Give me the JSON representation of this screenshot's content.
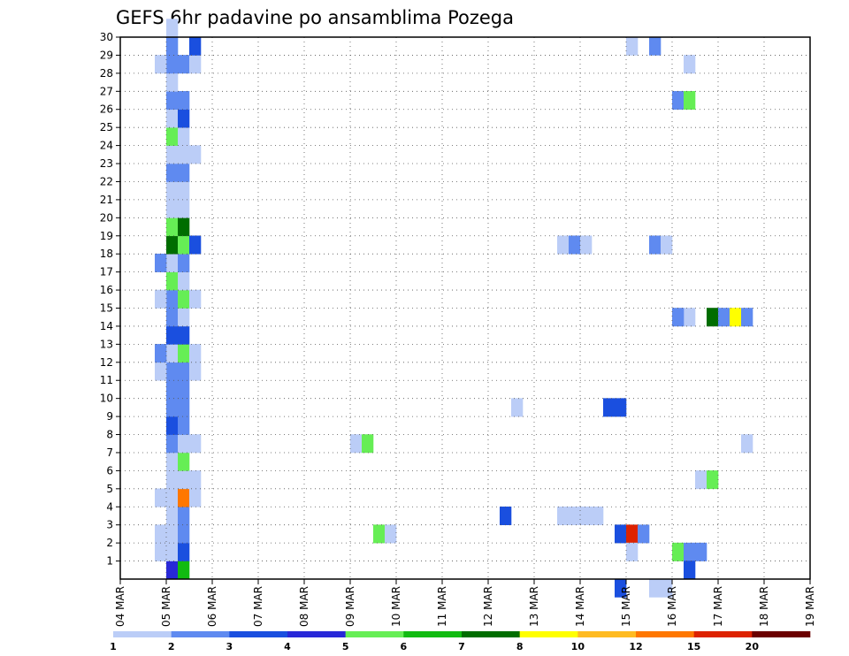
{
  "chart_data": {
    "type": "heatmap",
    "title": "GEFS 6hr padavine po ansamblima Pozega",
    "x_ticks": [
      "04 MAR",
      "05 MAR",
      "06 MAR",
      "07 MAR",
      "08 MAR",
      "09 MAR",
      "10 MAR",
      "11 MAR",
      "12 MAR",
      "13 MAR",
      "14 MAR",
      "15 MAR",
      "16 MAR",
      "17 MAR",
      "18 MAR",
      "19 MAR"
    ],
    "xlim": [
      0,
      60
    ],
    "x_unit": "6-hour steps since 04 MAR 00Z",
    "y_ticks": [
      "1",
      "2",
      "3",
      "4",
      "5",
      "6",
      "7",
      "8",
      "9",
      "10",
      "11",
      "12",
      "13",
      "14",
      "15",
      "16",
      "17",
      "18",
      "19",
      "20",
      "21",
      "22",
      "23",
      "24",
      "25",
      "26",
      "27",
      "28",
      "29",
      "30"
    ],
    "ylim": [
      0,
      30
    ],
    "legend": {
      "labels": [
        "1",
        "2",
        "3",
        "4",
        "5",
        "6",
        "7",
        "8",
        "10",
        "12",
        "15",
        "20"
      ],
      "colors": [
        "#bbcdf7",
        "#5f8af0",
        "#1a4fdf",
        "#2828d8",
        "#66ee55",
        "#11bb11",
        "#006d00",
        "#ffff00",
        "#ffbb22",
        "#ff7700",
        "#dd2200",
        "#6b0000"
      ]
    },
    "grid": true,
    "cells": [
      [
        4,
        0,
        3
      ],
      [
        4,
        1,
        0
      ],
      [
        4,
        2,
        0
      ],
      [
        4,
        3,
        0
      ],
      [
        4,
        4,
        0
      ],
      [
        4,
        5,
        0
      ],
      [
        4,
        6,
        0
      ],
      [
        4,
        7,
        1
      ],
      [
        4,
        8,
        2
      ],
      [
        4,
        9,
        1
      ],
      [
        4,
        10,
        1
      ],
      [
        4,
        11,
        1
      ],
      [
        4,
        12,
        0
      ],
      [
        4,
        13,
        2
      ],
      [
        4,
        14,
        1
      ],
      [
        4,
        15,
        1
      ],
      [
        4,
        16,
        4
      ],
      [
        4,
        17,
        0
      ],
      [
        4,
        18,
        6
      ],
      [
        4,
        19,
        4
      ],
      [
        4,
        20,
        0
      ],
      [
        4,
        21,
        0
      ],
      [
        4,
        22,
        1
      ],
      [
        4,
        23,
        0
      ],
      [
        4,
        24,
        4
      ],
      [
        4,
        25,
        0
      ],
      [
        4,
        26,
        1
      ],
      [
        4,
        27,
        0
      ],
      [
        4,
        28,
        1
      ],
      [
        4,
        29,
        1
      ],
      [
        4,
        30,
        0
      ],
      [
        5,
        0,
        5
      ],
      [
        5,
        1,
        2
      ],
      [
        5,
        2,
        1
      ],
      [
        5,
        3,
        1
      ],
      [
        5,
        4,
        9
      ],
      [
        5,
        5,
        0
      ],
      [
        5,
        6,
        4
      ],
      [
        5,
        7,
        0
      ],
      [
        5,
        8,
        1
      ],
      [
        5,
        9,
        1
      ],
      [
        5,
        10,
        1
      ],
      [
        5,
        11,
        1
      ],
      [
        5,
        12,
        4
      ],
      [
        5,
        13,
        2
      ],
      [
        5,
        14,
        0
      ],
      [
        5,
        15,
        4
      ],
      [
        5,
        16,
        0
      ],
      [
        5,
        17,
        1
      ],
      [
        5,
        18,
        4
      ],
      [
        5,
        19,
        6
      ],
      [
        5,
        20,
        0
      ],
      [
        5,
        21,
        0
      ],
      [
        5,
        22,
        1
      ],
      [
        5,
        23,
        0
      ],
      [
        5,
        24,
        0
      ],
      [
        5,
        25,
        2
      ],
      [
        5,
        26,
        1
      ],
      [
        5,
        28,
        1
      ],
      [
        3,
        1,
        0
      ],
      [
        3,
        2,
        0
      ],
      [
        3,
        4,
        0
      ],
      [
        3,
        11,
        0
      ],
      [
        3,
        12,
        1
      ],
      [
        3,
        15,
        0
      ],
      [
        3,
        17,
        1
      ],
      [
        3,
        28,
        0
      ],
      [
        6,
        4,
        0
      ],
      [
        6,
        5,
        0
      ],
      [
        6,
        7,
        0
      ],
      [
        6,
        11,
        0
      ],
      [
        6,
        12,
        0
      ],
      [
        6,
        15,
        0
      ],
      [
        6,
        18,
        2
      ],
      [
        6,
        23,
        0
      ],
      [
        6,
        28,
        0
      ],
      [
        6,
        29,
        2
      ],
      [
        20,
        7,
        0
      ],
      [
        21,
        7,
        4
      ],
      [
        22,
        2,
        4
      ],
      [
        23,
        2,
        0
      ],
      [
        34,
        9,
        0
      ],
      [
        33,
        3,
        2
      ],
      [
        38,
        3,
        0
      ],
      [
        39,
        3,
        0
      ],
      [
        38,
        18,
        0
      ],
      [
        39,
        18,
        1
      ],
      [
        40,
        18,
        0
      ],
      [
        40,
        3,
        0
      ],
      [
        41,
        3,
        0
      ],
      [
        42,
        9,
        2
      ],
      [
        43,
        9,
        2
      ],
      [
        43,
        -1,
        2
      ],
      [
        43,
        2,
        2
      ],
      [
        44,
        2,
        10
      ],
      [
        45,
        2,
        1
      ],
      [
        44,
        1,
        0
      ],
      [
        44,
        29,
        0
      ],
      [
        46,
        -1,
        0
      ],
      [
        47,
        -1,
        0
      ],
      [
        46,
        18,
        1
      ],
      [
        47,
        18,
        0
      ],
      [
        46,
        29,
        1
      ],
      [
        48,
        1,
        4
      ],
      [
        49,
        1,
        1
      ],
      [
        50,
        1,
        1
      ],
      [
        49,
        0,
        2
      ],
      [
        49,
        14,
        0
      ],
      [
        48,
        14,
        1
      ],
      [
        48,
        26,
        1
      ],
      [
        49,
        26,
        4
      ],
      [
        49,
        28,
        0
      ],
      [
        50,
        5,
        0
      ],
      [
        51,
        5,
        4
      ],
      [
        51,
        14,
        6
      ],
      [
        52,
        14,
        1
      ],
      [
        53,
        14,
        7
      ],
      [
        54,
        14,
        1
      ],
      [
        54,
        7,
        0
      ]
    ]
  }
}
